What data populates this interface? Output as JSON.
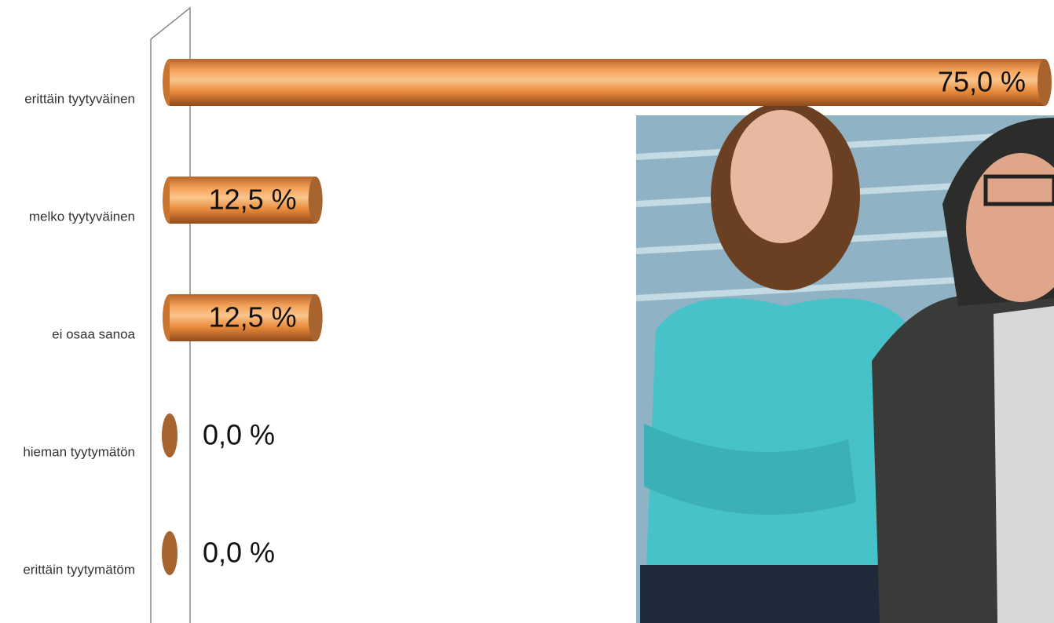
{
  "chart_data": {
    "type": "bar",
    "orientation": "horizontal",
    "categories": [
      "erittäin tyytyväinen",
      "melko tyytyväinen",
      "ei osaa sanoa",
      "hieman tyytymätön",
      "erittäin tyytymätöm"
    ],
    "values": [
      75,
      12.5,
      12.5,
      0,
      0
    ],
    "value_labels": [
      "75,0 %",
      "12,5 %",
      "12,5 %",
      "0,0 %",
      "0,0 %"
    ],
    "color": "#e8893a"
  }
}
